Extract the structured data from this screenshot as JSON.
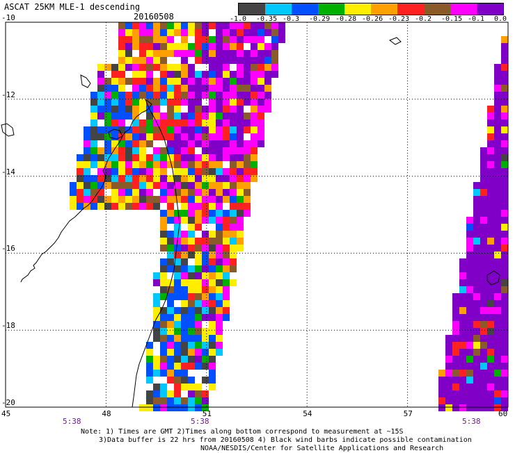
{
  "header": {
    "title": "ASCAT 25KM MLE-1 descending",
    "date": "20160508"
  },
  "colorbar": {
    "colors": [
      "#444444",
      "#00c8ff",
      "#0050ff",
      "#00b000",
      "#ffee00",
      "#ffa000",
      "#ff2020",
      "#8b5a2b",
      "#ff00ff",
      "#8000c8"
    ],
    "labels": [
      "-1.0",
      "-0.35",
      "-0.3",
      "-0.29",
      "-0.28",
      "-0.26",
      "-0.23",
      "-0.2",
      "-0.15",
      "-0.1",
      "0.0"
    ]
  },
  "axes": {
    "lat_ticks": [
      "-10",
      "-12",
      "-14",
      "-16",
      "-18",
      "-20"
    ],
    "lon_ticks": [
      "45",
      "48",
      "51",
      "54",
      "57",
      "60"
    ],
    "lat_values": [
      -10,
      -12,
      -14,
      -16,
      -18,
      -20
    ],
    "lon_values": [
      45,
      48,
      51,
      54,
      57,
      60
    ],
    "lon_range": [
      45,
      60
    ],
    "lat_range": [
      -10,
      -20
    ],
    "grid": "dotted"
  },
  "swath_times": [
    "5:38",
    "5:38",
    "5:38"
  ],
  "notes": {
    "line1": "Note: 1) Times are GMT 2)Times along bottom correspond to measurement at ~15S",
    "line2": "3)Data buffer is 22 hrs from 20160508 4) Black wind barbs indicate possible contamination",
    "line3": "NOAA/NESDIS/Center for Satellite Applications and Research"
  }
}
